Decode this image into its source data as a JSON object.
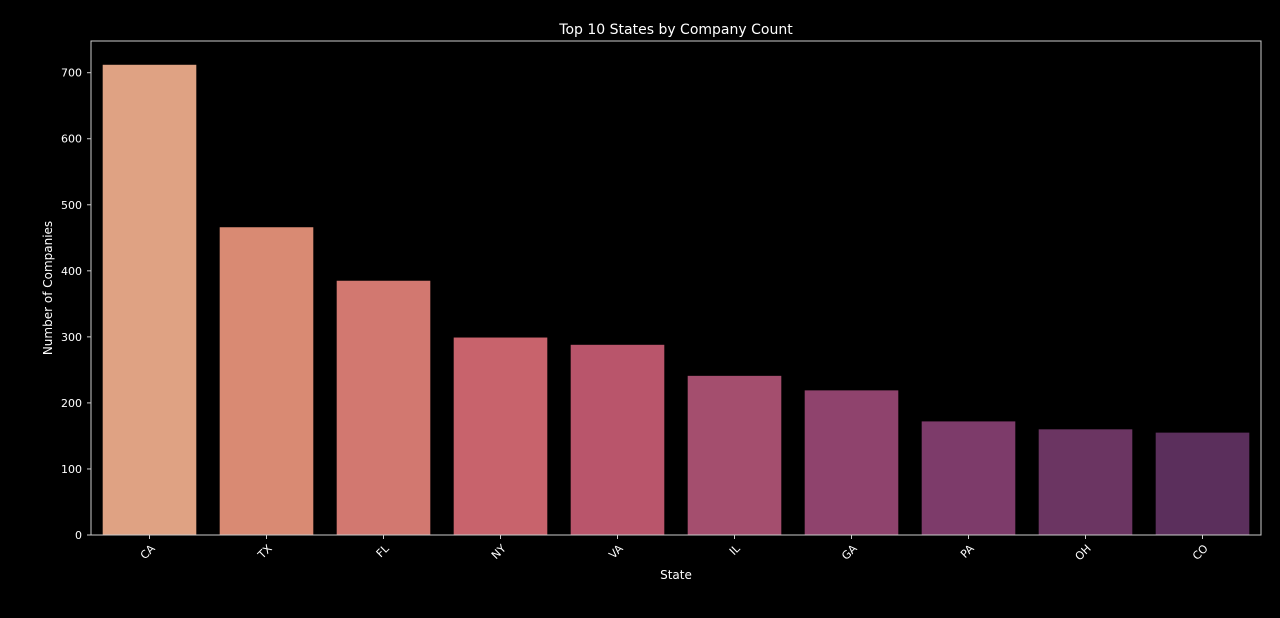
{
  "chart_data": {
    "type": "bar",
    "title": "Top 10 States by Company Count",
    "xlabel": "State",
    "ylabel": "Number of Companies",
    "categories": [
      "CA",
      "TX",
      "FL",
      "NY",
      "VA",
      "IL",
      "GA",
      "PA",
      "OH",
      "CO"
    ],
    "values": [
      712,
      466,
      385,
      299,
      288,
      241,
      219,
      172,
      160,
      155
    ],
    "ylim": [
      0,
      748
    ],
    "yticks": [
      0,
      100,
      200,
      300,
      400,
      500,
      600,
      700
    ],
    "colors": [
      "#DFA283",
      "#D98A73",
      "#D27870",
      "#C8636C",
      "#B9556B",
      "#A44E6E",
      "#8F436D",
      "#7D3B6A",
      "#6B3562",
      "#5B2F5C"
    ],
    "grid": false,
    "background": "#000000",
    "axis_color": "#CCCCCC",
    "text_color": "#FFFFFF"
  }
}
